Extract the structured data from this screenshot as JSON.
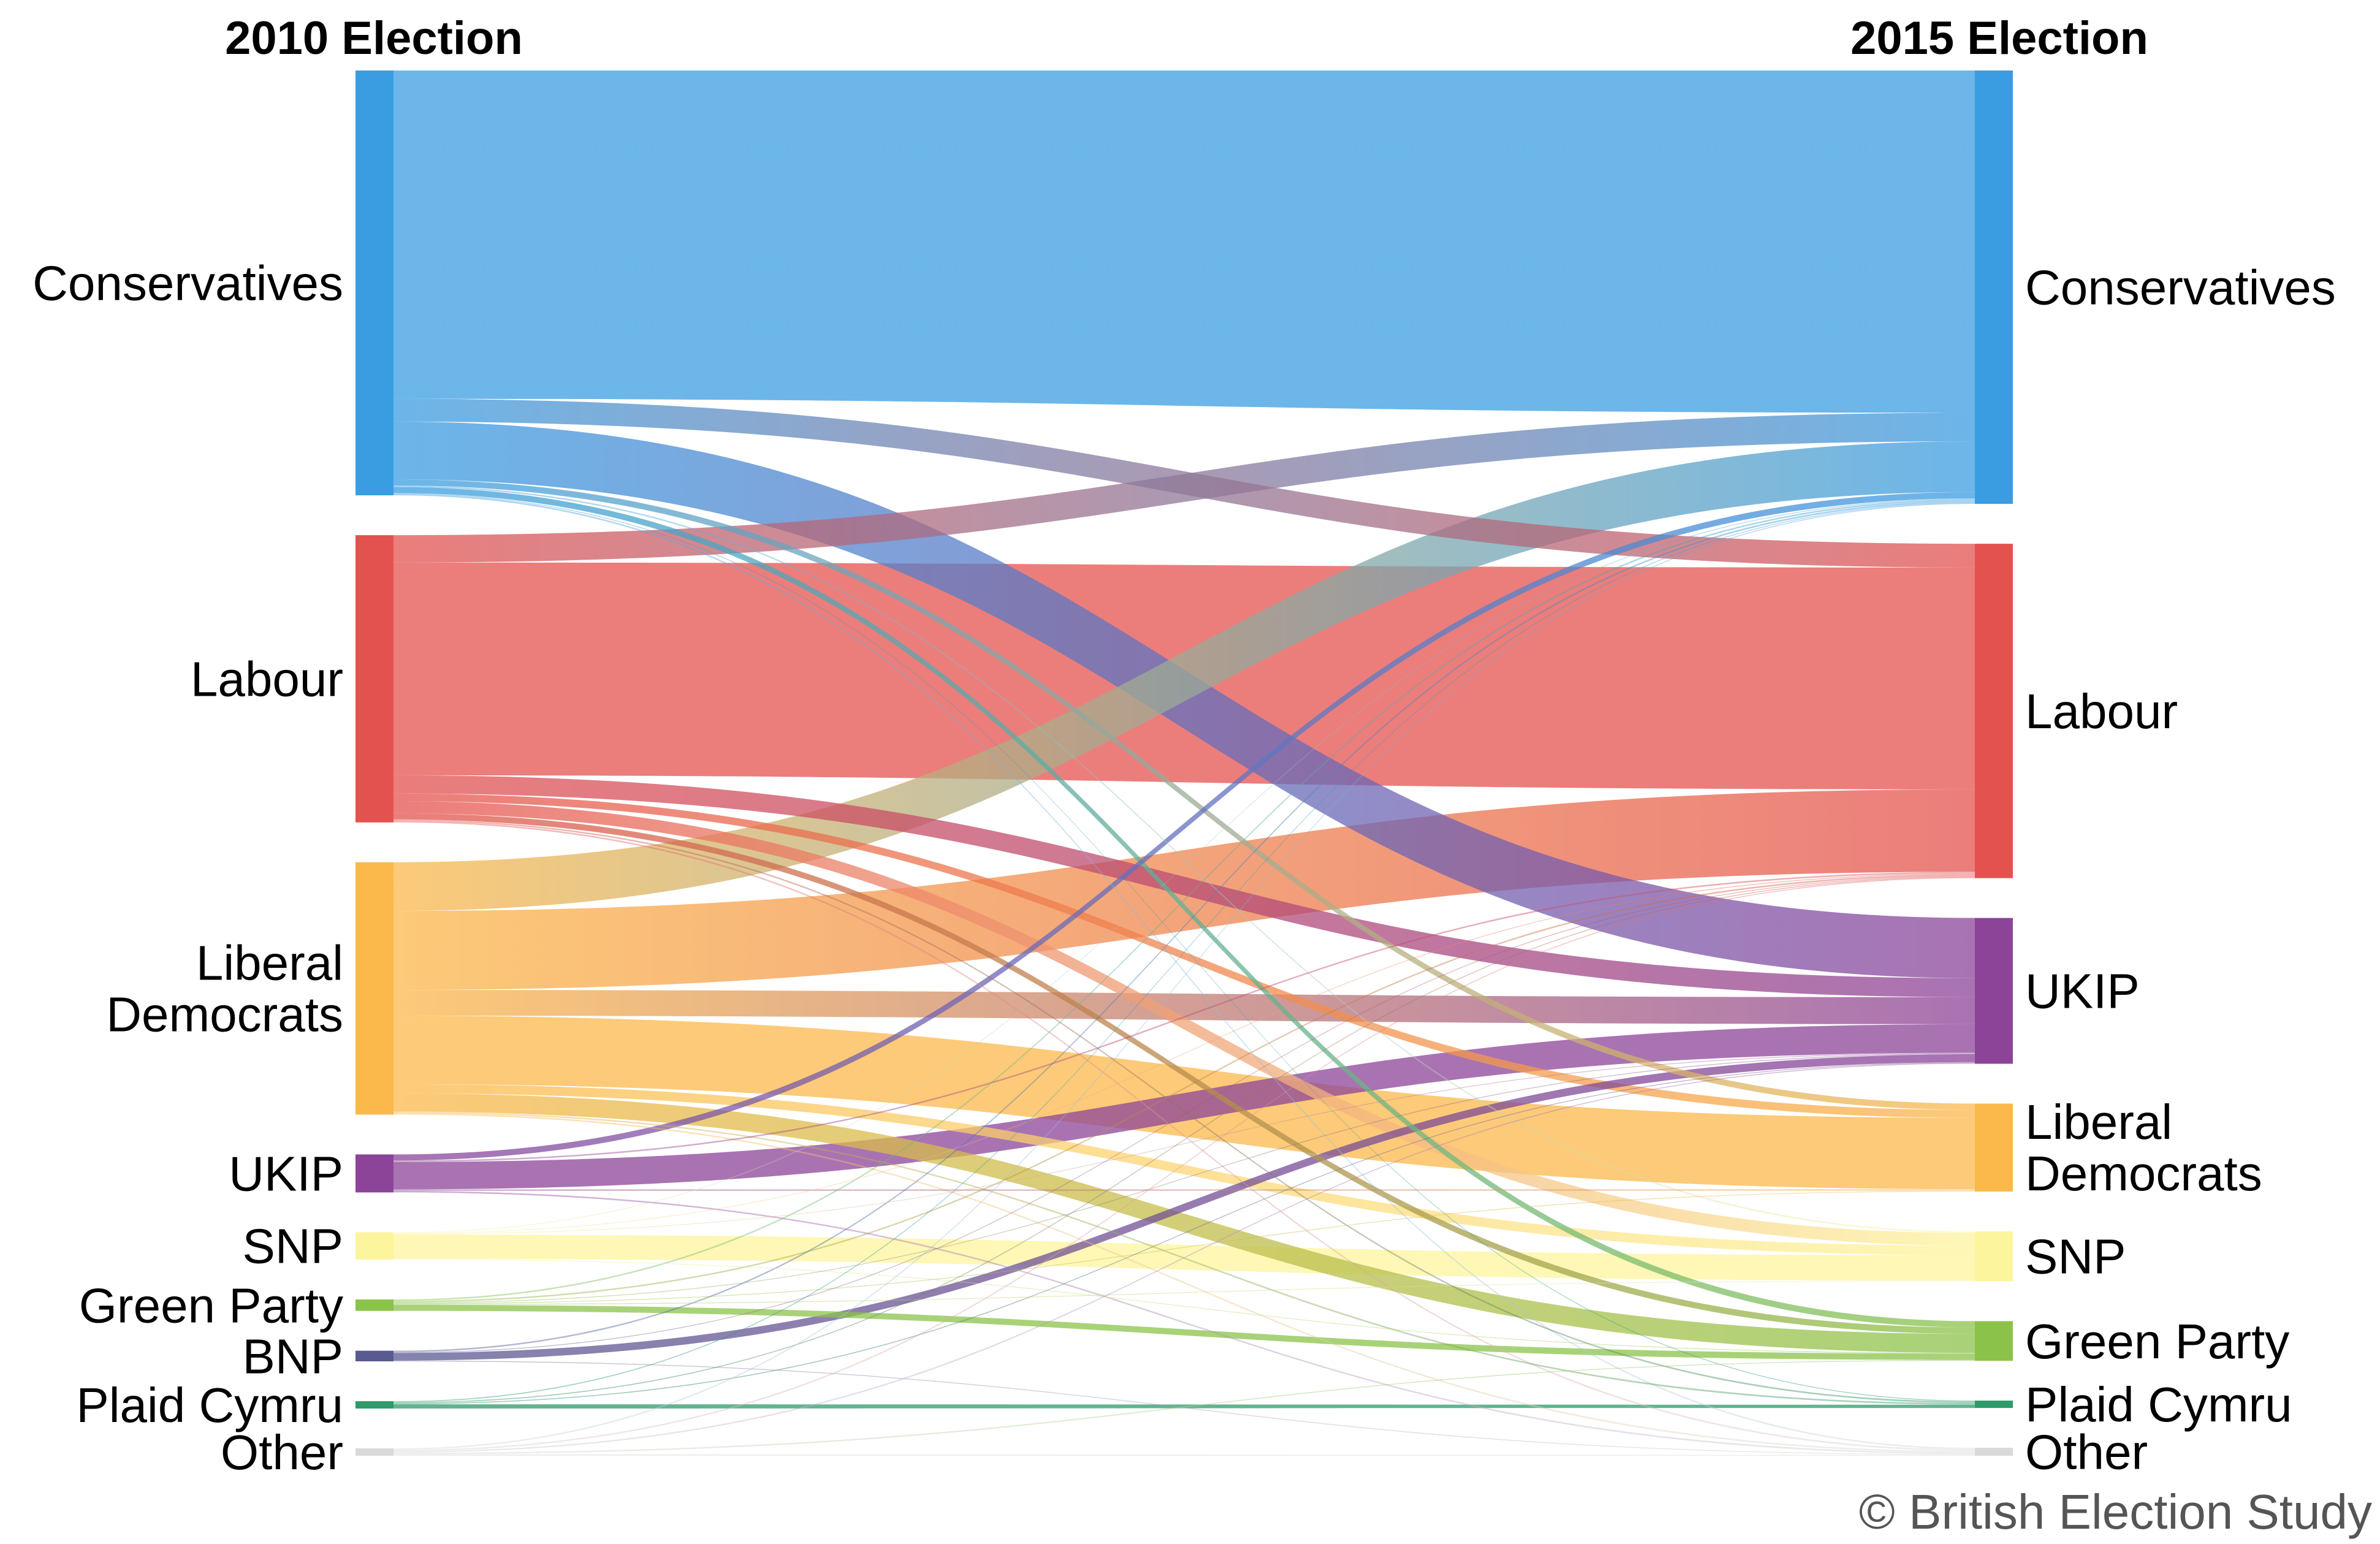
{
  "chart_data": {
    "type": "sankey",
    "left_title": "2010 Election",
    "right_title": "2015 Election",
    "credit": "© British Election Study",
    "left_nodes": [
      {
        "id": "con",
        "label": "Conservatives",
        "lines": [
          "Conservatives"
        ],
        "color": "#3a9de2"
      },
      {
        "id": "lab",
        "label": "Labour",
        "lines": [
          "Labour"
        ],
        "color": "#e4524f"
      },
      {
        "id": "ld",
        "label": "Liberal Democrats",
        "lines": [
          "Liberal",
          "Democrats"
        ],
        "color": "#fbb84b"
      },
      {
        "id": "ukip",
        "label": "UKIP",
        "lines": [
          "UKIP"
        ],
        "color": "#8c4499"
      },
      {
        "id": "snp",
        "label": "SNP",
        "lines": [
          "SNP"
        ],
        "color": "#fdf49e"
      },
      {
        "id": "grn",
        "label": "Green Party",
        "lines": [
          "Green Party"
        ],
        "color": "#8bc34a"
      },
      {
        "id": "bnp",
        "label": "BNP",
        "lines": [
          "BNP"
        ],
        "color": "#5a5a92"
      },
      {
        "id": "pc",
        "label": "Plaid Cymru",
        "lines": [
          "Plaid Cymru"
        ],
        "color": "#2e9b6a"
      },
      {
        "id": "oth",
        "label": "Other",
        "lines": [
          "Other"
        ],
        "color": "#d9d9d9"
      }
    ],
    "right_nodes": [
      {
        "id": "con",
        "label": "Conservatives",
        "lines": [
          "Conservatives"
        ],
        "color": "#3a9de2"
      },
      {
        "id": "lab",
        "label": "Labour",
        "lines": [
          "Labour"
        ],
        "color": "#e4524f"
      },
      {
        "id": "ukip",
        "label": "UKIP",
        "lines": [
          "UKIP"
        ],
        "color": "#8c4499"
      },
      {
        "id": "ld",
        "label": "Liberal Democrats",
        "lines": [
          "Liberal",
          "Democrats"
        ],
        "color": "#fbb84b"
      },
      {
        "id": "snp",
        "label": "SNP",
        "lines": [
          "SNP"
        ],
        "color": "#fdf49e"
      },
      {
        "id": "grn",
        "label": "Green Party",
        "lines": [
          "Green Party"
        ],
        "color": "#8bc34a"
      },
      {
        "id": "pc",
        "label": "Plaid Cymru",
        "lines": [
          "Plaid Cymru"
        ],
        "color": "#2e9b6a"
      },
      {
        "id": "oth",
        "label": "Other",
        "lines": [
          "Other"
        ],
        "color": "#d9d9d9"
      }
    ],
    "flows": [
      {
        "from": "con",
        "to": "con",
        "value": 216
      },
      {
        "from": "con",
        "to": "lab",
        "value": 15
      },
      {
        "from": "con",
        "to": "ukip",
        "value": 38
      },
      {
        "from": "con",
        "to": "ld",
        "value": 4
      },
      {
        "from": "con",
        "to": "snp",
        "value": 1
      },
      {
        "from": "con",
        "to": "grn",
        "value": 4
      },
      {
        "from": "con",
        "to": "pc",
        "value": 0.5
      },
      {
        "from": "con",
        "to": "oth",
        "value": 1
      },
      {
        "from": "lab",
        "to": "con",
        "value": 18
      },
      {
        "from": "lab",
        "to": "lab",
        "value": 140
      },
      {
        "from": "lab",
        "to": "ukip",
        "value": 12
      },
      {
        "from": "lab",
        "to": "ld",
        "value": 5
      },
      {
        "from": "lab",
        "to": "snp",
        "value": 8
      },
      {
        "from": "lab",
        "to": "grn",
        "value": 4
      },
      {
        "from": "lab",
        "to": "pc",
        "value": 1
      },
      {
        "from": "lab",
        "to": "oth",
        "value": 1
      },
      {
        "from": "ld",
        "to": "con",
        "value": 32
      },
      {
        "from": "ld",
        "to": "lab",
        "value": 52
      },
      {
        "from": "ld",
        "to": "ukip",
        "value": 17
      },
      {
        "from": "ld",
        "to": "ld",
        "value": 45
      },
      {
        "from": "ld",
        "to": "snp",
        "value": 6
      },
      {
        "from": "ld",
        "to": "grn",
        "value": 12
      },
      {
        "from": "ld",
        "to": "pc",
        "value": 1
      },
      {
        "from": "ld",
        "to": "oth",
        "value": 1
      },
      {
        "from": "ukip",
        "to": "con",
        "value": 4
      },
      {
        "from": "ukip",
        "to": "lab",
        "value": 1
      },
      {
        "from": "ukip",
        "to": "ukip",
        "value": 18
      },
      {
        "from": "ukip",
        "to": "ld",
        "value": 1
      },
      {
        "from": "ukip",
        "to": "oth",
        "value": 1
      },
      {
        "from": "snp",
        "to": "con",
        "value": 0.5
      },
      {
        "from": "snp",
        "to": "lab",
        "value": 0.5
      },
      {
        "from": "snp",
        "to": "ukip",
        "value": 0.5
      },
      {
        "from": "snp",
        "to": "snp",
        "value": 16
      },
      {
        "from": "snp",
        "to": "grn",
        "value": 0.5
      },
      {
        "from": "grn",
        "to": "con",
        "value": 1
      },
      {
        "from": "grn",
        "to": "lab",
        "value": 1
      },
      {
        "from": "grn",
        "to": "ukip",
        "value": 0.5
      },
      {
        "from": "grn",
        "to": "ld",
        "value": 0.5
      },
      {
        "from": "grn",
        "to": "snp",
        "value": 0.5
      },
      {
        "from": "grn",
        "to": "grn",
        "value": 4
      },
      {
        "from": "bnp",
        "to": "con",
        "value": 1
      },
      {
        "from": "bnp",
        "to": "lab",
        "value": 0.5
      },
      {
        "from": "bnp",
        "to": "ukip",
        "value": 5
      },
      {
        "from": "bnp",
        "to": "oth",
        "value": 0.5
      },
      {
        "from": "pc",
        "to": "con",
        "value": 0.5
      },
      {
        "from": "pc",
        "to": "lab",
        "value": 0.5
      },
      {
        "from": "pc",
        "to": "ukip",
        "value": 0.5
      },
      {
        "from": "pc",
        "to": "pc",
        "value": 2
      },
      {
        "from": "oth",
        "to": "con",
        "value": 0.5
      },
      {
        "from": "oth",
        "to": "lab",
        "value": 0.5
      },
      {
        "from": "oth",
        "to": "ukip",
        "value": 0.5
      },
      {
        "from": "oth",
        "to": "grn",
        "value": 0.5
      },
      {
        "from": "oth",
        "to": "oth",
        "value": 0.5
      }
    ]
  }
}
